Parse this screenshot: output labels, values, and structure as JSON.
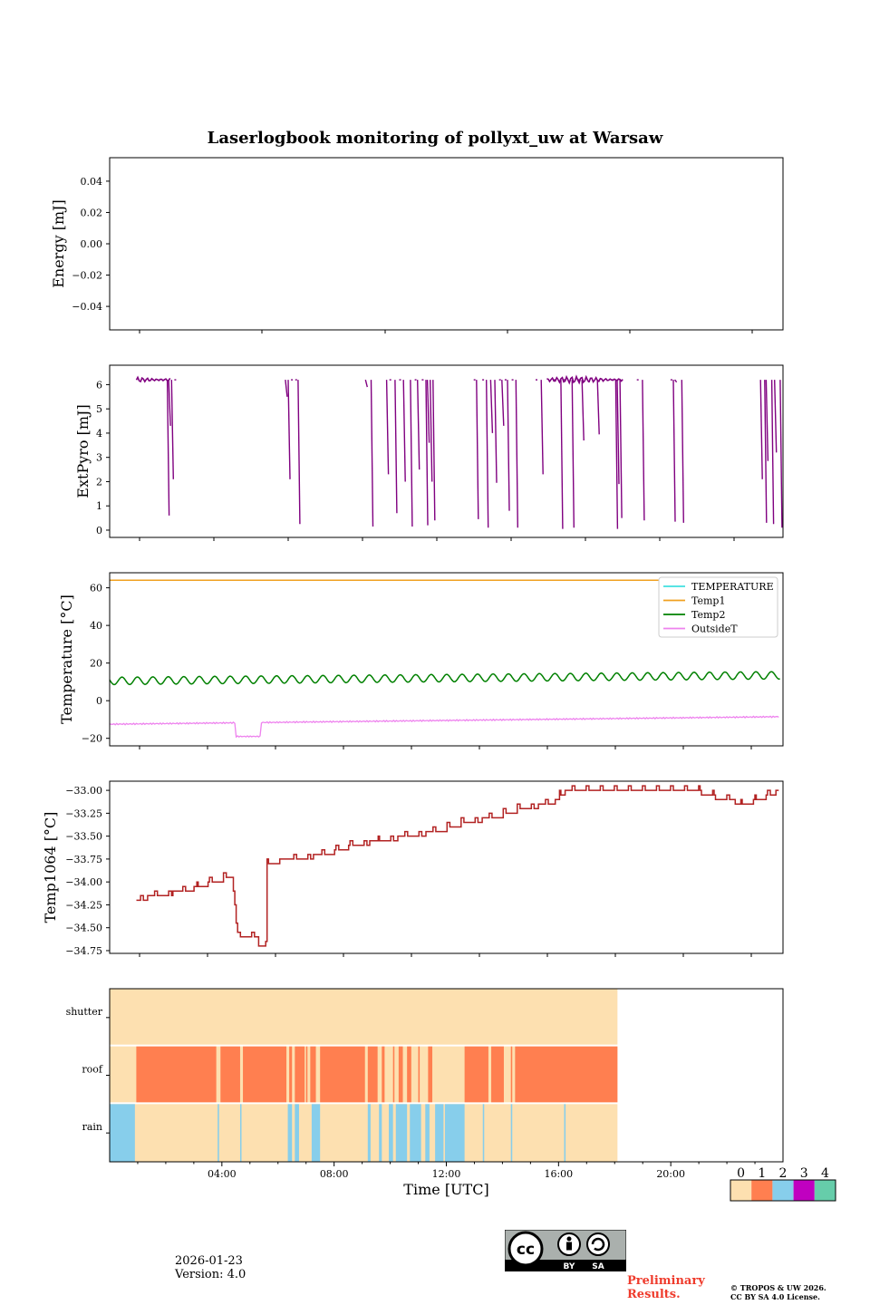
{
  "figure": {
    "title": "Laserlogbook monitoring of pollyxt_uw at Warsaw",
    "date": "2026-01-23",
    "version": "Version: 4.0",
    "preliminary_line1": "Preliminary",
    "preliminary_line2": "Results.",
    "copyright_line1": "© TROPOS & UW 2026.",
    "copyright_line2": "CC BY SA 4.0 License.",
    "license_badge": {
      "cc": "cc",
      "by": "BY",
      "sa": "SA"
    }
  },
  "chart_data": [
    {
      "id": "energy",
      "type": "line",
      "ylabel": "Energy [mJ]",
      "ylim": [
        -0.055,
        0.055
      ],
      "yticks": [
        -0.04,
        -0.02,
        0.0,
        0.02,
        0.04
      ],
      "ytick_labels": [
        "−0.04",
        "−0.02",
        "0.00",
        "0.02",
        "0.04"
      ],
      "series": []
    },
    {
      "id": "extpyro",
      "type": "line",
      "ylabel": "ExtPyro [mJ]",
      "ylim": [
        -0.3,
        6.8
      ],
      "yticks": [
        0,
        1,
        2,
        3,
        4,
        5,
        6
      ],
      "ytick_labels": [
        "0",
        "1",
        "2",
        "3",
        "4",
        "5",
        "6"
      ],
      "xlim_hours": [
        0.25,
        24.2
      ],
      "color": "#800080",
      "baseline": 6.2,
      "segments": [
        [
          1.2,
          2.4
        ],
        [
          15.8,
          16.2
        ],
        [
          16.2,
          17.3
        ],
        [
          17.3,
          18.5
        ]
      ],
      "drops": [
        [
          2.3,
          0.6
        ],
        [
          2.35,
          4.3
        ],
        [
          2.45,
          2.1
        ],
        [
          2.55,
          6.2
        ],
        [
          6.5,
          5.5
        ],
        [
          6.6,
          2.1
        ],
        [
          6.7,
          6.2
        ],
        [
          6.85,
          6.2
        ],
        [
          6.95,
          0.25
        ],
        [
          9.35,
          5.9
        ],
        [
          9.55,
          0.15
        ],
        [
          10.1,
          2.3
        ],
        [
          10.2,
          6.2
        ],
        [
          10.4,
          0.7
        ],
        [
          10.55,
          6.2
        ],
        [
          10.7,
          2.0
        ],
        [
          10.95,
          0.15
        ],
        [
          11.1,
          6.2
        ],
        [
          11.2,
          2.5
        ],
        [
          11.35,
          6.2
        ],
        [
          11.5,
          0.2
        ],
        [
          11.55,
          3.6
        ],
        [
          11.65,
          2.0
        ],
        [
          11.75,
          0.4
        ],
        [
          13.2,
          6.2
        ],
        [
          13.3,
          0.45
        ],
        [
          13.5,
          6.2
        ],
        [
          13.65,
          0.1
        ],
        [
          13.8,
          4.0
        ],
        [
          13.95,
          1.95
        ],
        [
          14.1,
          6.2
        ],
        [
          14.2,
          4.3
        ],
        [
          14.3,
          6.2
        ],
        [
          14.4,
          0.8
        ],
        [
          14.55,
          6.2
        ],
        [
          14.7,
          0.1
        ],
        [
          15.4,
          6.2
        ],
        [
          15.6,
          2.3
        ],
        [
          16.05,
          6.2
        ],
        [
          16.3,
          0.05
        ],
        [
          16.4,
          6.2
        ],
        [
          16.7,
          0.1
        ],
        [
          16.9,
          6.2
        ],
        [
          17.05,
          3.7
        ],
        [
          17.6,
          3.95
        ],
        [
          18.1,
          6.2
        ],
        [
          18.25,
          0.05
        ],
        [
          18.3,
          1.9
        ],
        [
          18.4,
          0.5
        ],
        [
          19.0,
          6.2
        ],
        [
          19.2,
          0.4
        ],
        [
          20.2,
          6.2
        ],
        [
          20.3,
          0.35
        ],
        [
          20.35,
          6.1
        ],
        [
          20.6,
          0.3
        ],
        [
          23.4,
          2.1
        ],
        [
          23.55,
          0.3
        ],
        [
          23.6,
          2.85
        ],
        [
          23.8,
          0.25
        ],
        [
          23.9,
          3.2
        ],
        [
          24.1,
          0.1
        ]
      ]
    },
    {
      "id": "temperature",
      "type": "line",
      "ylabel": "Temperature [°C]",
      "ylim": [
        -24,
        68
      ],
      "yticks": [
        -20,
        0,
        20,
        40,
        60
      ],
      "ytick_labels": [
        "−20",
        "0",
        "20",
        "40",
        "60"
      ],
      "xlim_hours": [
        0.25,
        24.2
      ],
      "legend": [
        "TEMPERATURE",
        "Temp1",
        "Temp2",
        "OutsideT"
      ],
      "legend_loc": "upper right",
      "series": [
        {
          "name": "TEMPERATURE",
          "color": "#40e0e0",
          "values": []
        },
        {
          "name": "Temp1",
          "color": "#f0a020",
          "value_constant": 64
        },
        {
          "name": "Temp2",
          "color": "#008000",
          "start": 10.5,
          "end": 13.5,
          "oscillation": 2.0
        },
        {
          "name": "OutsideT",
          "color": "#ee82ee",
          "start": -12.5,
          "end": -8.5,
          "dip": {
            "from": 4.7,
            "to": 5.6,
            "value": -19
          }
        }
      ]
    },
    {
      "id": "temp1064",
      "type": "line",
      "ylabel": "Temp1064 [°C]",
      "ylim": [
        -34.78,
        -32.9
      ],
      "yticks": [
        -34.75,
        -34.5,
        -34.25,
        -34.0,
        -33.75,
        -33.5,
        -33.25,
        -33.0
      ],
      "ytick_labels": [
        "−34.75",
        "−34.50",
        "−34.25",
        "−34.00",
        "−33.75",
        "−33.50",
        "−33.25",
        "−33.00"
      ],
      "xlim_hours": [
        0.25,
        24.2
      ],
      "color": "#b22222",
      "points": [
        [
          1.2,
          -34.2
        ],
        [
          2.0,
          -34.15
        ],
        [
          3.0,
          -34.1
        ],
        [
          4.0,
          -34.0
        ],
        [
          4.6,
          -33.95
        ],
        [
          4.8,
          -34.6
        ],
        [
          5.4,
          -34.6
        ],
        [
          5.5,
          -34.7
        ],
        [
          5.75,
          -34.7
        ],
        [
          5.8,
          -33.8
        ],
        [
          7.0,
          -33.75
        ],
        [
          8.0,
          -33.7
        ],
        [
          9.0,
          -33.6
        ],
        [
          10.0,
          -33.55
        ],
        [
          11.0,
          -33.5
        ],
        [
          12.0,
          -33.45
        ],
        [
          13.0,
          -33.35
        ],
        [
          14.0,
          -33.3
        ],
        [
          15.0,
          -33.2
        ],
        [
          16.0,
          -33.15
        ],
        [
          16.5,
          -33.0
        ],
        [
          18.0,
          -33.0
        ],
        [
          20.0,
          -33.0
        ],
        [
          21.0,
          -33.0
        ],
        [
          22.0,
          -33.1
        ],
        [
          23.0,
          -33.15
        ],
        [
          23.8,
          -33.05
        ],
        [
          24.1,
          -33.0
        ]
      ]
    },
    {
      "id": "status",
      "type": "heatmap",
      "rows": [
        "shutter",
        "roof",
        "rain"
      ],
      "xlabel": "Time [UTC]",
      "xlim_hours": [
        0.0,
        24.0
      ],
      "xticks": [
        4,
        8,
        12,
        16,
        20
      ],
      "xtick_labels": [
        "04:00",
        "08:00",
        "12:00",
        "16:00",
        "20:00"
      ],
      "data_end_hour": 18.1,
      "colorbar": {
        "labels": [
          "0",
          "1",
          "2",
          "3",
          "4"
        ],
        "colors": [
          "#fde0b0",
          "#ff7f50",
          "#87ceeb",
          "#c000c0",
          "#66cdaa"
        ]
      },
      "roof_state1_intervals": [
        [
          0.95,
          3.8
        ],
        [
          3.95,
          4.65
        ],
        [
          4.75,
          6.3
        ],
        [
          6.4,
          6.5
        ],
        [
          6.6,
          6.95
        ],
        [
          7.0,
          7.05
        ],
        [
          7.15,
          7.35
        ],
        [
          7.5,
          9.1
        ],
        [
          9.2,
          9.55
        ],
        [
          9.7,
          9.8
        ],
        [
          10.1,
          10.15
        ],
        [
          10.3,
          10.45
        ],
        [
          10.6,
          10.75
        ],
        [
          11.0,
          11.05
        ],
        [
          11.35,
          11.5
        ],
        [
          12.65,
          13.5
        ],
        [
          13.6,
          14.05
        ],
        [
          14.3,
          14.35
        ],
        [
          14.45,
          18.1
        ]
      ],
      "rain_state2_intervals": [
        [
          0.0,
          0.9
        ],
        [
          3.85,
          3.9
        ],
        [
          4.65,
          4.7
        ],
        [
          6.35,
          6.5
        ],
        [
          6.6,
          6.75
        ],
        [
          7.2,
          7.5
        ],
        [
          9.2,
          9.3
        ],
        [
          9.6,
          9.7
        ],
        [
          9.95,
          10.1
        ],
        [
          10.2,
          10.6
        ],
        [
          10.7,
          11.1
        ],
        [
          11.25,
          11.4
        ],
        [
          11.6,
          11.9
        ],
        [
          11.95,
          12.65
        ],
        [
          13.3,
          13.35
        ],
        [
          14.3,
          14.35
        ],
        [
          16.2,
          16.25
        ]
      ]
    }
  ]
}
